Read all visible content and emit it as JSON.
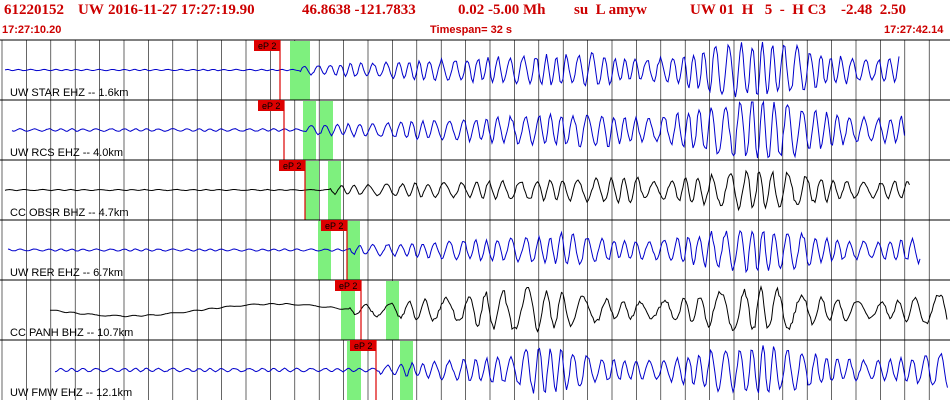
{
  "header": {
    "event_id": "61220152",
    "network": "UW",
    "datetime": "2016-11-27 17:27:19.90",
    "coords": "46.8638 -121.7833",
    "depth_mag": "0.02 -5.00 Mh",
    "flags": "su  L amyw",
    "tail": "UW 01  H   5  -  H C3    -2.48  2.50"
  },
  "subheader": {
    "start_time": "17:27:10.20",
    "timespan": "Timespan=  32 s",
    "end_time": "17:27:42.14"
  },
  "colors": {
    "header_text": "#cc0000",
    "trace_blue": "#0000cc",
    "trace_black": "#000000",
    "pick_red": "#dd0000",
    "window_green": "#7ef07e",
    "grid": "#000000"
  },
  "traces": [
    {
      "label": "UW STAR EHZ -- 1.6km",
      "pick": "eP 2",
      "color": "blue"
    },
    {
      "label": "UW RCS EHZ -- 4.0km",
      "pick": "eP 2",
      "color": "blue"
    },
    {
      "label": "CC OBSR BHZ -- 4.7km",
      "pick": "eP 2",
      "color": "black"
    },
    {
      "label": "UW RER EHZ -- 6.7km",
      "pick": "eP 2",
      "color": "blue"
    },
    {
      "label": "CC PANH BHZ -- 10.7km",
      "pick": "eP 2",
      "color": "black"
    },
    {
      "label": "UW FMW EHZ -- 12.1km",
      "pick": "eP 2",
      "color": "blue"
    }
  ]
}
